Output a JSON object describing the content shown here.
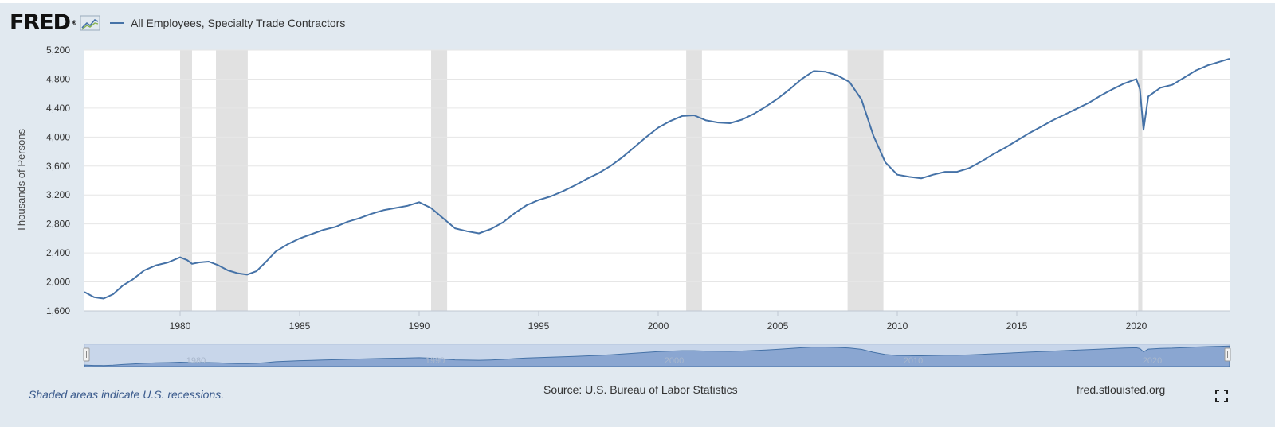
{
  "header": {
    "logo_text": "FRED",
    "logo_reg": "®",
    "graph_icon": "fred-graph-icon",
    "legend_label": "All Employees, Specialty Trade Contractors",
    "legend_color": "#4572a7"
  },
  "footer": {
    "recession_note": "Shaded areas indicate U.S. recessions.",
    "source": "Source: U.S. Bureau of Labor Statistics",
    "site": "fred.stlouisfed.org",
    "fullscreen_icon": "fullscreen-icon"
  },
  "colors": {
    "background": "#e1e9f0",
    "plot_background": "#ffffff",
    "line": "#4572a7",
    "recession_band": "#e1e1e1",
    "navigator_fill": "#8aa6d1"
  },
  "chart_data": {
    "type": "line",
    "title": "",
    "xlabel": "",
    "ylabel": "Thousands of Persons",
    "xlim": [
      1976.0,
      2023.9
    ],
    "ylim": [
      1600,
      5200
    ],
    "yticks": [
      1600,
      2000,
      2400,
      2800,
      3200,
      3600,
      4000,
      4400,
      4800,
      5200
    ],
    "ytick_labels": [
      "1,600",
      "2,000",
      "2,400",
      "2,800",
      "3,200",
      "3,600",
      "4,000",
      "4,400",
      "4,800",
      "5,200"
    ],
    "xticks": [
      1980,
      1985,
      1990,
      1995,
      2000,
      2005,
      2010,
      2015,
      2020
    ],
    "xtick_labels": [
      "1980",
      "1985",
      "1990",
      "1995",
      "2000",
      "2005",
      "2010",
      "2015",
      "2020"
    ],
    "grid": true,
    "recessions": [
      [
        1980.0,
        1980.5
      ],
      [
        1981.5,
        1982.83
      ],
      [
        1990.5,
        1991.17
      ],
      [
        2001.17,
        2001.83
      ],
      [
        2007.92,
        2009.42
      ],
      [
        2020.08,
        2020.25
      ]
    ],
    "series": [
      {
        "name": "All Employees, Specialty Trade Contractors",
        "x": [
          1976.0,
          1976.4,
          1976.8,
          1977.2,
          1977.6,
          1978.0,
          1978.5,
          1979.0,
          1979.5,
          1980.0,
          1980.3,
          1980.5,
          1980.8,
          1981.2,
          1981.6,
          1982.0,
          1982.4,
          1982.8,
          1983.2,
          1983.6,
          1984.0,
          1984.5,
          1985.0,
          1985.5,
          1986.0,
          1986.5,
          1987.0,
          1987.5,
          1988.0,
          1988.5,
          1989.0,
          1989.5,
          1990.0,
          1990.5,
          1991.0,
          1991.5,
          1992.0,
          1992.5,
          1993.0,
          1993.5,
          1994.0,
          1994.5,
          1995.0,
          1995.5,
          1996.0,
          1996.5,
          1997.0,
          1997.5,
          1998.0,
          1998.5,
          1999.0,
          1999.5,
          2000.0,
          2000.5,
          2001.0,
          2001.5,
          2002.0,
          2002.5,
          2003.0,
          2003.5,
          2004.0,
          2004.5,
          2005.0,
          2005.5,
          2006.0,
          2006.5,
          2007.0,
          2007.5,
          2008.0,
          2008.5,
          2009.0,
          2009.5,
          2010.0,
          2010.5,
          2011.0,
          2011.5,
          2012.0,
          2012.5,
          2013.0,
          2013.5,
          2014.0,
          2014.5,
          2015.0,
          2015.5,
          2016.0,
          2016.5,
          2017.0,
          2017.5,
          2018.0,
          2018.5,
          2019.0,
          2019.5,
          2020.0,
          2020.15,
          2020.3,
          2020.5,
          2021.0,
          2021.5,
          2022.0,
          2022.5,
          2023.0,
          2023.5,
          2023.9
        ],
        "y": [
          1860,
          1790,
          1770,
          1830,
          1950,
          2030,
          2160,
          2230,
          2270,
          2340,
          2300,
          2250,
          2270,
          2280,
          2230,
          2160,
          2120,
          2100,
          2150,
          2280,
          2420,
          2520,
          2600,
          2660,
          2720,
          2760,
          2830,
          2880,
          2940,
          2990,
          3020,
          3050,
          3100,
          3020,
          2880,
          2740,
          2700,
          2670,
          2730,
          2820,
          2950,
          3060,
          3130,
          3180,
          3250,
          3330,
          3420,
          3500,
          3600,
          3720,
          3860,
          4000,
          4130,
          4220,
          4290,
          4300,
          4230,
          4200,
          4190,
          4240,
          4320,
          4420,
          4530,
          4660,
          4800,
          4910,
          4900,
          4850,
          4760,
          4520,
          4020,
          3650,
          3480,
          3450,
          3430,
          3480,
          3520,
          3520,
          3570,
          3660,
          3760,
          3850,
          3950,
          4050,
          4140,
          4230,
          4310,
          4390,
          4470,
          4570,
          4660,
          4740,
          4800,
          4660,
          4100,
          4560,
          4680,
          4720,
          4820,
          4920,
          4990,
          5040,
          5080
        ]
      }
    ]
  }
}
